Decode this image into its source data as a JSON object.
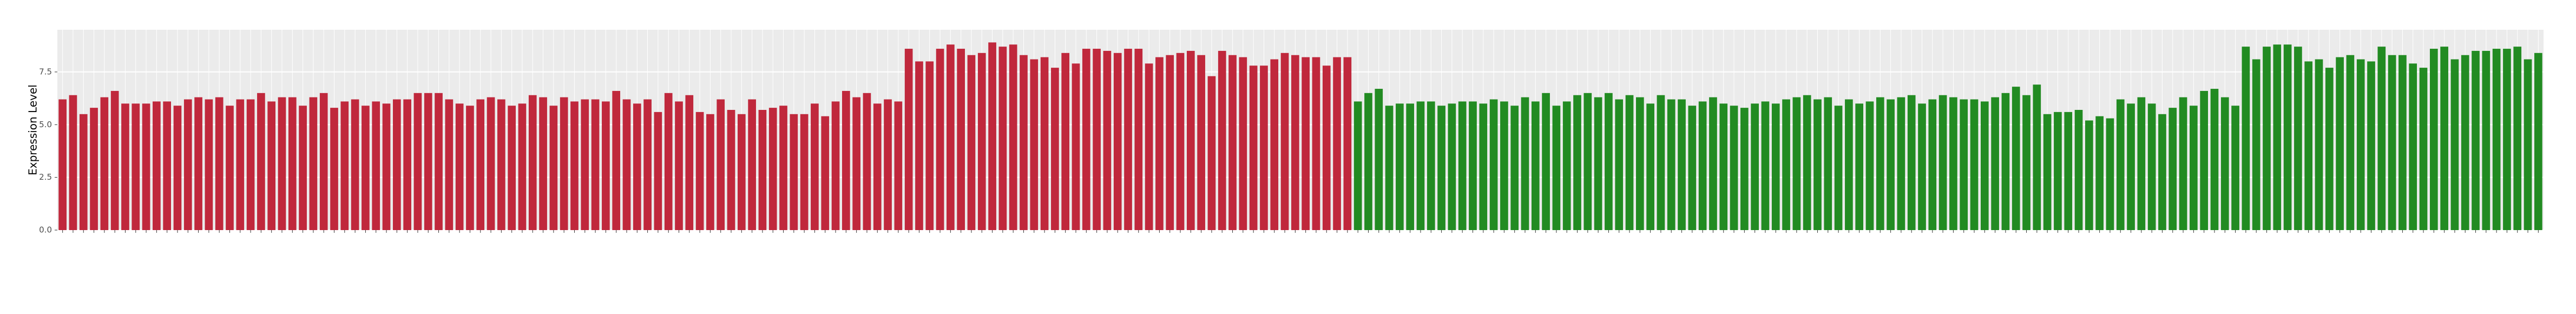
{
  "chart_data": {
    "type": "bar",
    "y_label": "Expression Level",
    "ylim": [
      0,
      9.5
    ],
    "yticks": [
      {
        "value": 0,
        "label": "0.0"
      },
      {
        "value": 2.5,
        "label": "2.5"
      },
      {
        "value": 5,
        "label": "5.0"
      },
      {
        "value": 7.5,
        "label": "7.5"
      }
    ],
    "grid": true,
    "series": [
      {
        "color": "#c0283c",
        "values": [
          6.2,
          6.4,
          5.5,
          5.8,
          6.3,
          6.6,
          6.0,
          6.0,
          6.0,
          6.1,
          6.1,
          5.9,
          6.2,
          6.3,
          6.2,
          6.3,
          5.9,
          6.2,
          6.2,
          6.5,
          6.1,
          6.3,
          6.3,
          5.9,
          6.3,
          6.5,
          5.8,
          6.1,
          6.2,
          5.9,
          6.1,
          6.0,
          6.2,
          6.2,
          6.5,
          6.5,
          6.5,
          6.2,
          6.0,
          5.9,
          6.2,
          6.3,
          6.2,
          5.9,
          6.0,
          6.4,
          6.3,
          5.9,
          6.3,
          6.1,
          6.2,
          6.2,
          6.1,
          6.6,
          6.2,
          6.0,
          6.2,
          5.6,
          6.5,
          6.1,
          6.4,
          5.6,
          5.5,
          6.2,
          5.7,
          5.5,
          6.2,
          5.7,
          5.8,
          5.9,
          5.5,
          5.5,
          6.0,
          5.4,
          6.1,
          6.6,
          6.3,
          6.5,
          6.0,
          6.2,
          6.1,
          8.6,
          8.0,
          8.0,
          8.6,
          8.8,
          8.6,
          8.3,
          8.4,
          8.9,
          8.7,
          8.8,
          8.3,
          8.1,
          8.2,
          7.7,
          8.4,
          7.9,
          8.6,
          8.6,
          8.5,
          8.4,
          8.6,
          8.6,
          7.9,
          8.2,
          8.3,
          8.4,
          8.5,
          8.3,
          7.3,
          8.5,
          8.3,
          8.2,
          7.8,
          7.8,
          8.1,
          8.4,
          8.3,
          8.2,
          8.2,
          7.8,
          8.2,
          8.2
        ]
      },
      {
        "color": "#228b22",
        "values": [
          6.1,
          6.5,
          6.7,
          5.9,
          6.0,
          6.0,
          6.1,
          6.1,
          5.9,
          6.0,
          6.1,
          6.1,
          6.0,
          6.2,
          6.1,
          5.9,
          6.3,
          6.1,
          6.5,
          5.9,
          6.1,
          6.4,
          6.5,
          6.3,
          6.5,
          6.2,
          6.4,
          6.3,
          6.0,
          6.4,
          6.2,
          6.2,
          5.9,
          6.1,
          6.3,
          6.0,
          5.9,
          5.8,
          6.0,
          6.1,
          6.0,
          6.2,
          6.3,
          6.4,
          6.2,
          6.3,
          5.9,
          6.2,
          6.0,
          6.1,
          6.3,
          6.2,
          6.3,
          6.4,
          6.0,
          6.2,
          6.4,
          6.3,
          6.2,
          6.2,
          6.1,
          6.3,
          6.5,
          6.8,
          6.4,
          6.9,
          5.5,
          5.6,
          5.6,
          5.7,
          5.2,
          5.4,
          5.3,
          6.2,
          6.0,
          6.3,
          6.0,
          5.5,
          5.8,
          6.3,
          5.9,
          6.6,
          6.7,
          6.3,
          5.9,
          8.7,
          8.1,
          8.7,
          8.8,
          8.8,
          8.7,
          8.0,
          8.1,
          7.7,
          8.2,
          8.3,
          8.1,
          8.0,
          8.7,
          8.3,
          8.3,
          7.9,
          7.7,
          8.6,
          8.7,
          8.1,
          8.3,
          8.5,
          8.5,
          8.6,
          8.6,
          8.7,
          8.1,
          8.4
        ]
      }
    ]
  }
}
